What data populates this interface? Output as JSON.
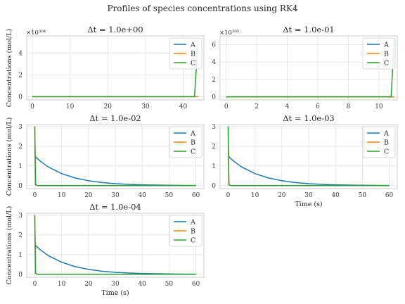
{
  "suptitle": "Profiles of species concentrations using RK4",
  "colors": {
    "A": "#1f77b4",
    "B": "#ff7f0e",
    "C": "#2ca02c"
  },
  "chart_data": [
    {
      "type": "line",
      "title": "Δt = 1.0e+00",
      "xlabel": "",
      "ylabel": "Concentrations (mol/L)",
      "y_offset_label": "×10³⁰⁴",
      "xlim": [
        -1.5,
        45.5
      ],
      "ylim": [
        -0.3,
        5.6
      ],
      "xticks": [
        0,
        10,
        20,
        30,
        40
      ],
      "yticks": [
        0,
        2,
        4
      ],
      "legend": "upper-right",
      "series": [
        {
          "name": "A",
          "x": [
            0,
            44
          ],
          "y": [
            0,
            0
          ]
        },
        {
          "name": "B",
          "x": [
            0,
            44
          ],
          "y": [
            0,
            0
          ]
        },
        {
          "name": "C",
          "x": [
            0,
            43,
            44
          ],
          "y": [
            0,
            0,
            5.3
          ]
        }
      ]
    },
    {
      "type": "line",
      "title": "Δt = 1.0e-01",
      "xlabel": "",
      "ylabel": "",
      "y_offset_label": "×10³⁰⁵",
      "xlim": [
        -0.4,
        11.2
      ],
      "ylim": [
        -0.35,
        7.0
      ],
      "xticks": [
        0,
        2,
        4,
        6,
        8,
        10
      ],
      "yticks": [
        0,
        2,
        4,
        6
      ],
      "legend": "upper-right",
      "series": [
        {
          "name": "A",
          "x": [
            0,
            11
          ],
          "y": [
            0,
            0
          ]
        },
        {
          "name": "B",
          "x": [
            0,
            11
          ],
          "y": [
            0,
            0
          ]
        },
        {
          "name": "C",
          "x": [
            0,
            10.8,
            11
          ],
          "y": [
            0,
            0,
            6.7
          ]
        }
      ]
    },
    {
      "type": "line",
      "title": "Δt = 1.0e-02",
      "xlabel": "",
      "ylabel": "Concentrations (mol/L)",
      "y_offset_label": "",
      "xlim": [
        -3,
        63
      ],
      "ylim": [
        -0.15,
        3.1
      ],
      "xticks": [
        0,
        10,
        20,
        30,
        40,
        50,
        60
      ],
      "yticks": [
        0,
        1,
        2,
        3
      ],
      "legend": "upper-right",
      "series": [
        {
          "name": "A",
          "x": [
            0,
            2,
            5,
            10,
            15,
            20,
            25,
            30,
            35,
            40,
            45,
            50,
            55,
            60
          ],
          "y": [
            1.5,
            1.25,
            0.95,
            0.61,
            0.39,
            0.25,
            0.16,
            0.1,
            0.066,
            0.043,
            0.028,
            0.018,
            0.011,
            0.007
          ]
        },
        {
          "name": "B",
          "x": [
            0,
            0.3,
            1,
            60
          ],
          "y": [
            3.0,
            0.05,
            0.0,
            0.0
          ]
        },
        {
          "name": "C",
          "x": [
            0,
            0.3,
            1,
            60
          ],
          "y": [
            3.0,
            0.05,
            0.0,
            0.0
          ]
        }
      ]
    },
    {
      "type": "line",
      "title": "Δt = 1.0e-03",
      "xlabel": "Time (s)",
      "ylabel": "",
      "y_offset_label": "",
      "xlim": [
        -3,
        63
      ],
      "ylim": [
        -0.15,
        3.1
      ],
      "xticks": [
        0,
        10,
        20,
        30,
        40,
        50,
        60
      ],
      "yticks": [
        0,
        1,
        2,
        3
      ],
      "legend": "upper-right",
      "series": [
        {
          "name": "A",
          "x": [
            0,
            2,
            5,
            10,
            15,
            20,
            25,
            30,
            35,
            40,
            45,
            50,
            55,
            60
          ],
          "y": [
            1.5,
            1.25,
            0.95,
            0.61,
            0.39,
            0.25,
            0.16,
            0.1,
            0.066,
            0.043,
            0.028,
            0.018,
            0.011,
            0.007
          ]
        },
        {
          "name": "B",
          "x": [
            0,
            0.3,
            1,
            60
          ],
          "y": [
            3.0,
            0.05,
            0.0,
            0.0
          ]
        },
        {
          "name": "C",
          "x": [
            0,
            0.3,
            1,
            60
          ],
          "y": [
            3.0,
            0.05,
            0.0,
            0.0
          ]
        }
      ]
    },
    {
      "type": "line",
      "title": "Δt = 1.0e-04",
      "xlabel": "Time (s)",
      "ylabel": "Concentrations (mol/L)",
      "y_offset_label": "",
      "xlim": [
        -3,
        63
      ],
      "ylim": [
        -0.15,
        3.1
      ],
      "xticks": [
        0,
        10,
        20,
        30,
        40,
        50,
        60
      ],
      "yticks": [
        0,
        1,
        2,
        3
      ],
      "legend": "upper-right",
      "series": [
        {
          "name": "A",
          "x": [
            0,
            2,
            5,
            10,
            15,
            20,
            25,
            30,
            35,
            40,
            45,
            50,
            55,
            60
          ],
          "y": [
            1.5,
            1.25,
            0.95,
            0.61,
            0.39,
            0.25,
            0.16,
            0.1,
            0.066,
            0.043,
            0.028,
            0.018,
            0.011,
            0.007
          ]
        },
        {
          "name": "B",
          "x": [
            0,
            0.3,
            1,
            60
          ],
          "y": [
            3.0,
            0.05,
            0.0,
            0.0
          ]
        },
        {
          "name": "C",
          "x": [
            0,
            0.3,
            1,
            60
          ],
          "y": [
            3.0,
            0.05,
            0.0,
            0.0
          ]
        }
      ]
    }
  ]
}
